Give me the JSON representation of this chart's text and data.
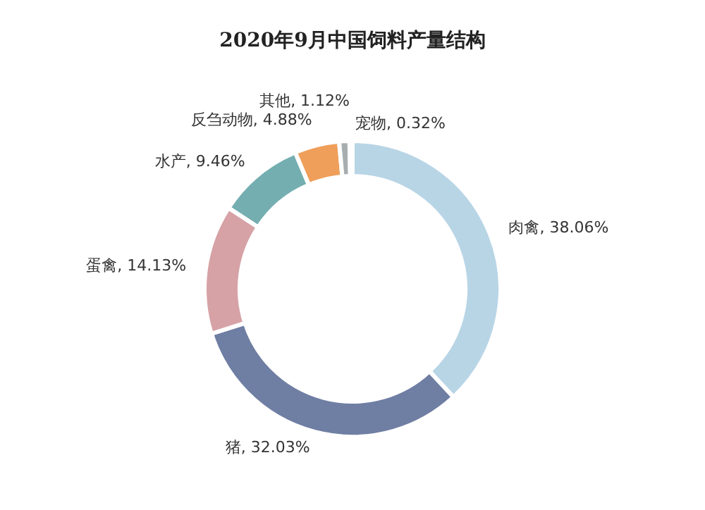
{
  "chart_data": {
    "type": "donut",
    "title": "2020年9月中国饲料产量结构",
    "categories": [
      "肉禽, 38.06%",
      "猪, 32.03%",
      "蛋禽, 14.13%",
      "水产, 9.46%",
      "反刍动物, 4.88%",
      "其他, 1.12%",
      "宠物, 0.32%"
    ],
    "values": [
      38.06,
      32.03,
      14.13,
      9.46,
      4.88,
      1.12,
      0.32
    ],
    "colors": [
      "#b8d5e6",
      "#6f7ea3",
      "#d6a2a6",
      "#74aeb0",
      "#ef9f5a",
      "#a8aeb0",
      "#c9d3da"
    ]
  }
}
